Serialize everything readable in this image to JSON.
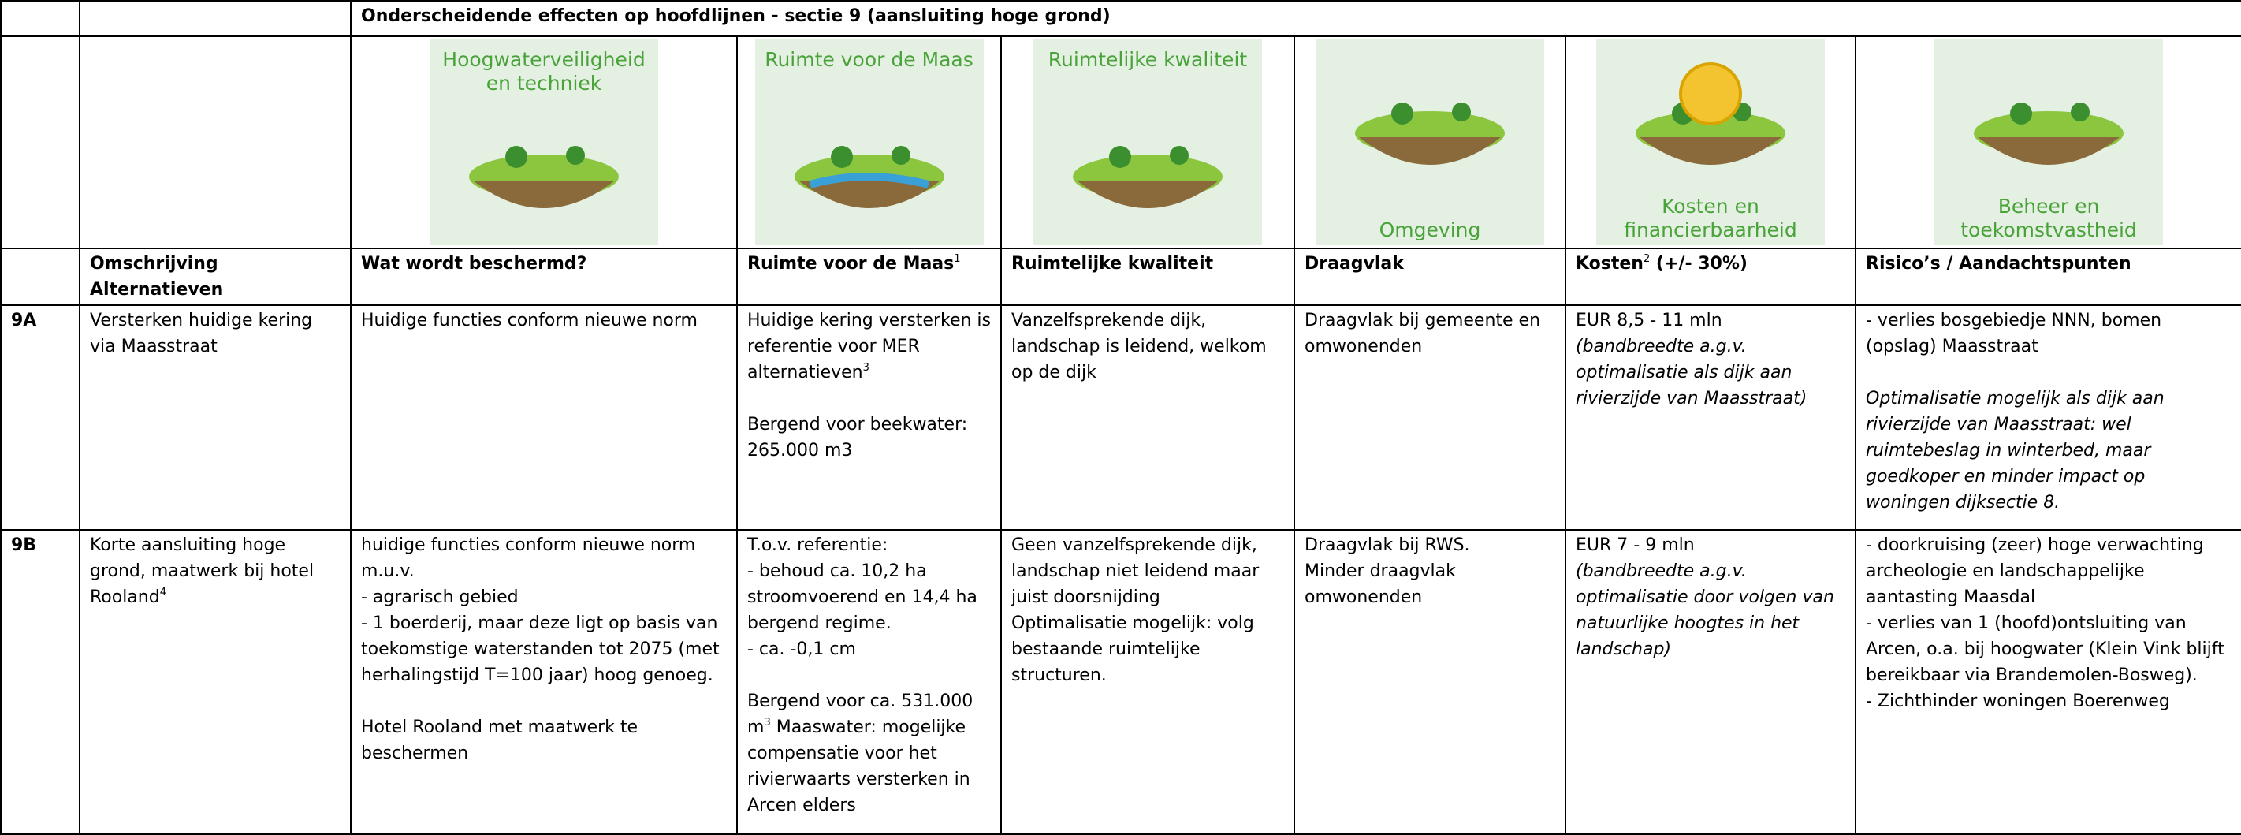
{
  "header": {
    "title": "Onderscheidende effecten op hoofdlijnen - sectie 9 (aansluiting hoge grond)"
  },
  "illustrations": [
    "Hoogwaterveiligheid en techniek",
    "Ruimte voor de Maas",
    "Ruimtelijke kwaliteit",
    "Omgeving",
    "Kosten en financierbaarheid",
    "Beheer en toekomstvastheid"
  ],
  "table": {
    "columns": [
      {
        "text": "Omschrijving Alternatieven"
      },
      {
        "text": "Wat wordt beschermd?"
      },
      {
        "text": "Ruimte voor de Maas",
        "note": "1"
      },
      {
        "text": "Ruimtelijke kwaliteit"
      },
      {
        "text": "Draagvlak"
      },
      {
        "text": "Kosten",
        "note": "2",
        "rest": " (+/- 30%)"
      },
      {
        "text": "Risico’s / Aandachtspunten"
      }
    ],
    "rows": [
      {
        "id": "9A",
        "description": "Versterken huidige kering via Maasstraat",
        "protected": [
          "Huidige functies conform nieuwe norm"
        ],
        "space": {
          "lines": [
            "Huidige kering versterken is referentie voor MER alternatieven"
          ],
          "note": "3",
          "storage": "Bergend voor beekwater: 265.000 m3"
        },
        "quality": [
          "Vanzelfsprekende dijk, landschap is leidend, welkom op de dijk"
        ],
        "support": [
          "Draagvlak bij gemeente en omwonenden"
        ],
        "costs": {
          "amount": "EUR 8,5 - 11 mln",
          "remark": "(bandbreedte a.g.v. optimalisatie als dijk aan rivierzijde van Maasstraat)"
        },
        "risks": {
          "lines": [
            "- verlies bosgebiedje NNN, bomen (opslag) Maasstraat"
          ],
          "remark": "Optimalisatie mogelijk als dijk aan rivierzijde van Maasstraat: wel ruimtebeslag in winterbed, maar goedkoper en minder impact op woningen dijksectie 8."
        }
      },
      {
        "id": "9B",
        "description": "Korte aansluiting hoge grond, maatwerk bij hotel Rooland",
        "description_note": "4",
        "protected": [
          "huidige functies  conform nieuwe norm m.u.v.",
          "- agrarisch gebied",
          "- 1 boerderij, maar deze ligt op basis van toekomstige waterstanden tot 2075 (met herhalingstijd T=100 jaar) hoog genoeg.",
          "Hotel Rooland met maatwerk te beschermen"
        ],
        "space": {
          "lines": [
            "T.o.v. referentie:",
            "- behoud ca. 10,2 ha stroomvoerend en 14,4 ha bergend regime.",
            "- ca. -0,1 cm"
          ],
          "storage": "Bergend voor ca. 531.000 m",
          "storage_note": "3",
          "storage_rest": " Maaswater: mogelijke compensatie voor het rivierwaarts versterken in Arcen elders"
        },
        "quality": [
          "Geen vanzelfsprekende dijk, landschap niet leidend maar juist doorsnijding",
          "Optimalisatie mogelijk: volg bestaande ruimtelijke structuren."
        ],
        "support": [
          "Draagvlak bij RWS.",
          "Minder draagvlak omwonenden"
        ],
        "costs": {
          "amount": "EUR 7 - 9 mln",
          "remark": "(bandbreedte a.g.v. optimalisatie door volgen van natuurlijke hoogtes in het landschap)"
        },
        "risks": {
          "lines": [
            "- doorkruising (zeer) hoge verwachting archeologie en landschappelijke aantasting Maasdal",
            "- verlies van 1 (hoofd)ontsluiting van Arcen, o.a. bij hoogwater (Klein Vink blijft bereikbaar via Brandemolen-Bosweg).",
            "- Zichthinder woningen Boerenweg"
          ]
        }
      }
    ]
  }
}
